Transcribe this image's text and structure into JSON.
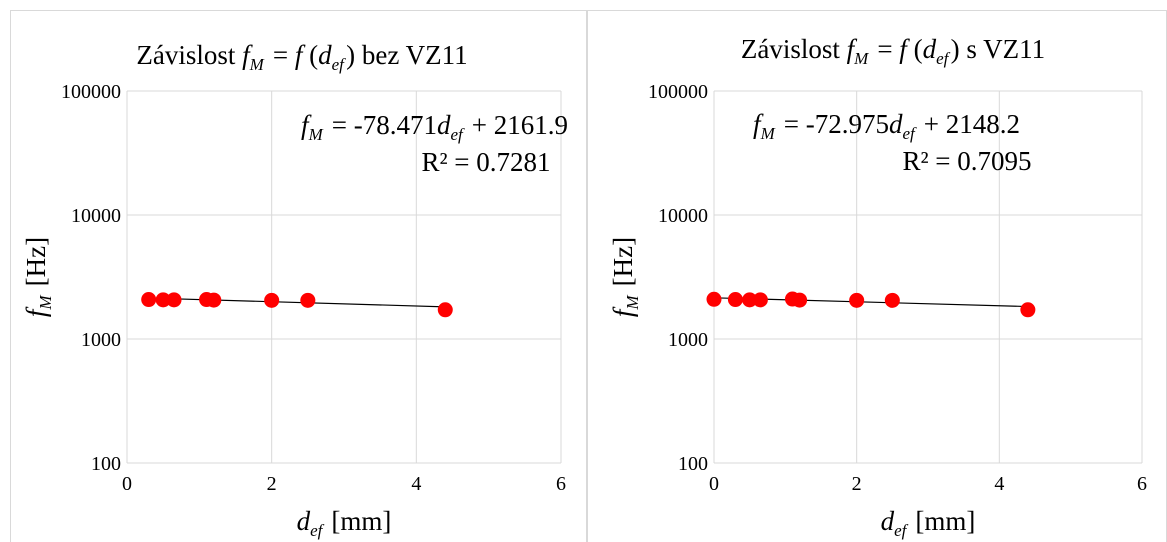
{
  "chart_data": [
    {
      "type": "scatter",
      "title": {
        "prefix": "Závislost ",
        "var": "f",
        "var_sub": "M",
        "mid": " = ",
        "func": "f",
        "open": " (",
        "arg": "d",
        "arg_sub": "ef",
        "close": ")",
        "suffix": " bez VZ11"
      },
      "xlabel": {
        "var": "d",
        "sub": "ef",
        "unit": " [mm]"
      },
      "ylabel": {
        "var": "f",
        "sub": "M",
        "unit": " [Hz]"
      },
      "xlim": [
        0,
        6
      ],
      "ylim": [
        100,
        100000
      ],
      "yscale": "log",
      "grid": true,
      "x_ticks": [
        "0",
        "2",
        "4",
        "6"
      ],
      "y_ticks": [
        "100",
        "1000",
        "10000",
        "100000"
      ],
      "series": [
        {
          "color": "#ff0000",
          "x": [
            0.3,
            0.5,
            0.65,
            1.1,
            1.2,
            2.0,
            2.5,
            4.4
          ],
          "y": [
            2080,
            2070,
            2070,
            2080,
            2060,
            2050,
            2050,
            1720
          ]
        }
      ],
      "trendline": {
        "slope": -78.471,
        "intercept": 2161.9,
        "equation": {
          "var": "f",
          "var_sub": "M",
          "eq": " = -78.471",
          "arg": "d",
          "arg_sub": "ef",
          "tail": " + 2161.9"
        },
        "r2": "R² = 0.7281",
        "x_range": [
          0.3,
          4.4
        ]
      }
    },
    {
      "type": "scatter",
      "title": {
        "prefix": "Závislost ",
        "var": "f",
        "var_sub": "M",
        "mid": " = ",
        "func": "f",
        "open": " (",
        "arg": "d",
        "arg_sub": "ef",
        "close": ")",
        "suffix": " s VZ11"
      },
      "xlabel": {
        "var": "d",
        "sub": "ef",
        "unit": " [mm]"
      },
      "ylabel": {
        "var": "f",
        "sub": "M",
        "unit": " [Hz]"
      },
      "xlim": [
        0,
        6
      ],
      "ylim": [
        100,
        100000
      ],
      "yscale": "log",
      "grid": true,
      "x_ticks": [
        "0",
        "2",
        "4",
        "6"
      ],
      "y_ticks": [
        "100",
        "1000",
        "10000",
        "100000"
      ],
      "series": [
        {
          "color": "#ff0000",
          "x": [
            0.0,
            0.3,
            0.5,
            0.65,
            1.1,
            1.2,
            2.0,
            2.5,
            4.4
          ],
          "y": [
            2090,
            2080,
            2070,
            2070,
            2100,
            2060,
            2050,
            2050,
            1720
          ]
        }
      ],
      "trendline": {
        "slope": -72.975,
        "intercept": 2148.2,
        "equation": {
          "var": "f",
          "var_sub": "M",
          "eq": " = -72.975",
          "arg": "d",
          "arg_sub": "ef",
          "tail": " + 2148.2"
        },
        "r2": "R² = 0.7095",
        "x_range": [
          0.0,
          4.4
        ]
      }
    }
  ]
}
